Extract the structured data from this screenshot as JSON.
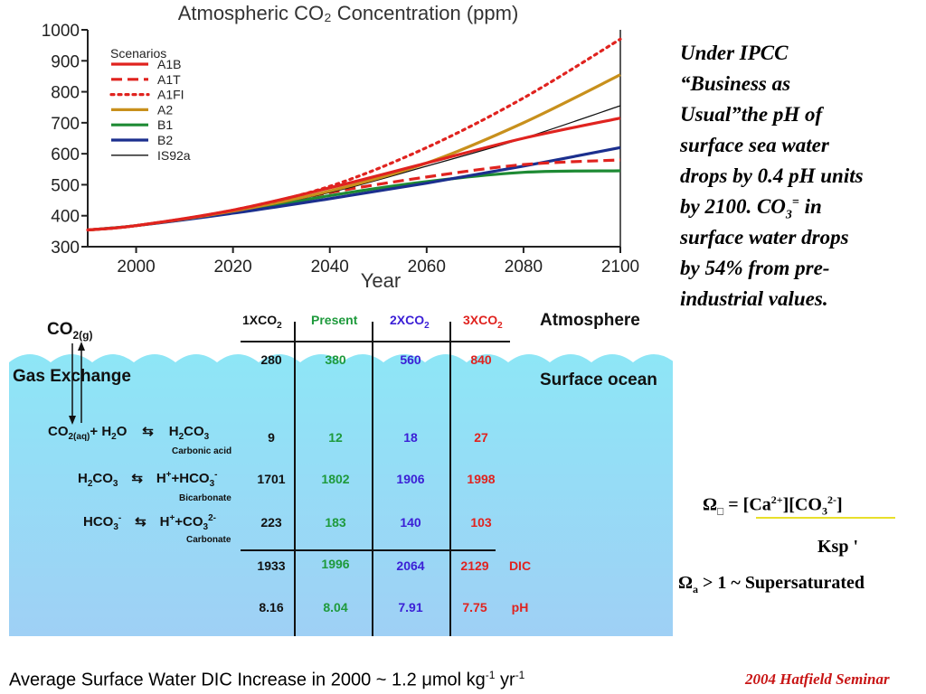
{
  "chart_data": {
    "type": "line",
    "title": "Atmospheric CO₂ Concentration (ppm)",
    "xlabel": "Year",
    "ylabel": "",
    "xlim": [
      1990,
      2100
    ],
    "ylim": [
      300,
      1000
    ],
    "xticks": [
      2000,
      2020,
      2040,
      2060,
      2080,
      2100
    ],
    "yticks": [
      300,
      400,
      500,
      600,
      700,
      800,
      900,
      1000
    ],
    "legend_title": "Scenarios",
    "legend_position": "top-left",
    "grid": false,
    "series": [
      {
        "name": "A1B",
        "color": "#e0231f",
        "style": "solid",
        "x": [
          1990,
          2000,
          2020,
          2040,
          2060,
          2080,
          2100
        ],
        "values": [
          354,
          368,
          418,
          490,
          570,
          650,
          715
        ]
      },
      {
        "name": "A1T",
        "color": "#e0231f",
        "style": "dashed",
        "x": [
          1990,
          2000,
          2020,
          2040,
          2060,
          2080,
          2100
        ],
        "values": [
          354,
          368,
          415,
          475,
          525,
          565,
          580
        ]
      },
      {
        "name": "A1FI",
        "color": "#e0231f",
        "style": "dotted",
        "x": [
          1990,
          2000,
          2020,
          2040,
          2060,
          2080,
          2100
        ],
        "values": [
          354,
          368,
          418,
          495,
          620,
          780,
          970
        ]
      },
      {
        "name": "A2",
        "color": "#c8901c",
        "style": "solid",
        "x": [
          1990,
          2000,
          2020,
          2040,
          2060,
          2080,
          2100
        ],
        "values": [
          354,
          368,
          415,
          480,
          570,
          700,
          855
        ]
      },
      {
        "name": "B1",
        "color": "#1e8a34",
        "style": "solid",
        "x": [
          1990,
          2000,
          2020,
          2040,
          2060,
          2080,
          2100
        ],
        "values": [
          354,
          368,
          410,
          465,
          510,
          540,
          545
        ]
      },
      {
        "name": "B2",
        "color": "#1b2f8e",
        "style": "solid",
        "x": [
          1990,
          2000,
          2020,
          2040,
          2060,
          2080,
          2100
        ],
        "values": [
          354,
          368,
          408,
          455,
          505,
          560,
          620
        ]
      },
      {
        "name": "IS92a",
        "color": "#111111",
        "style": "thin",
        "x": [
          1990,
          2000,
          2020,
          2040,
          2060,
          2080,
          2100
        ],
        "values": [
          354,
          368,
          415,
          475,
          560,
          650,
          755
        ]
      }
    ]
  },
  "note": {
    "line1": "Under IPCC",
    "line2": "“Business as",
    "line3": "Usual”the pH of",
    "line4": "surface sea water",
    "line5": "drops by 0.4 pH units",
    "line6": "by 2100. CO",
    "line6_sub": "3",
    "line6_sup": "=",
    "line6_end": " in",
    "line7": "surface water drops",
    "line8": "by 54% from pre-",
    "line9": "industrial values."
  },
  "diagram": {
    "co2_gas": "CO",
    "co2_gas_sub": "2(g)",
    "gas_exchange": "Gas Exchange",
    "atmosphere": "Atmosphere",
    "surface_ocean": "Surface ocean",
    "headers": {
      "c1": "1XCO",
      "c1_sub": "2",
      "c2": "Present",
      "c3": "2XCO",
      "c3_sub": "2",
      "c4": "3XCO",
      "c4_sub": "2"
    },
    "equations": {
      "eq1_a": "CO",
      "eq1_b": "2(aq)",
      "eq1_c": "+ H",
      "eq1_d": "2",
      "eq1_e": "O",
      "eq1_f": "H",
      "eq1_g": "2",
      "eq1_h": "CO",
      "eq1_i": "3",
      "eq1_label": "Carbonic acid",
      "eq2_a": "H",
      "eq2_b": "2",
      "eq2_c": "CO",
      "eq2_d": "3",
      "eq2_e": "H",
      "eq2_f": "+",
      "eq2_g": "+HCO",
      "eq2_h": "3",
      "eq2_i": "-",
      "eq2_label": "Bicarbonate",
      "eq3_a": "HCO",
      "eq3_b": "3",
      "eq3_c": "-",
      "eq3_d": "H",
      "eq3_e": "+",
      "eq3_f": "+CO",
      "eq3_g": "3",
      "eq3_h": "2-",
      "eq3_label": "Carbonate"
    },
    "rows": [
      {
        "v": [
          "280",
          "380",
          "560",
          "840"
        ],
        "unit": ""
      },
      {
        "v": [
          "9",
          "12",
          "18",
          "27"
        ],
        "unit": ""
      },
      {
        "v": [
          "1701",
          "1802",
          "1906",
          "1998"
        ],
        "unit": ""
      },
      {
        "v": [
          "223",
          "183",
          "140",
          "103"
        ],
        "unit": ""
      },
      {
        "v": [
          "1933",
          "1996",
          "2064",
          "2129"
        ],
        "unit": "DIC"
      },
      {
        "v": [
          "8.16",
          "8.04",
          "7.91",
          "7.75"
        ],
        "unit": "pH"
      }
    ]
  },
  "formula": {
    "omega": "Ω",
    "omega_sub": "□",
    "eq": " = [Ca",
    "ca_sup": "2+",
    "co3": "][CO",
    "co3_sub": "3",
    "co3_sup": "2-",
    "close": "]",
    "ksp": "Ksp '",
    "line3_omega": "Ω",
    "line3_sub": "a",
    "line3_rest": " > 1 ~ Supersaturated"
  },
  "bottom": {
    "text": "Average Surface Water DIC Increase in 2000  ~ 1.2 μmol kg",
    "sup1": "-1",
    "mid": " yr",
    "sup2": "-1"
  },
  "credit": "2004 Hatfield Seminar",
  "colors": {
    "ocean_top": "#8ee6f6",
    "ocean_bottom": "#9fd0f5",
    "green": "#1e9a3c",
    "blue": "#3b1fd6",
    "red": "#e0231f",
    "credit_red": "#c81414"
  }
}
